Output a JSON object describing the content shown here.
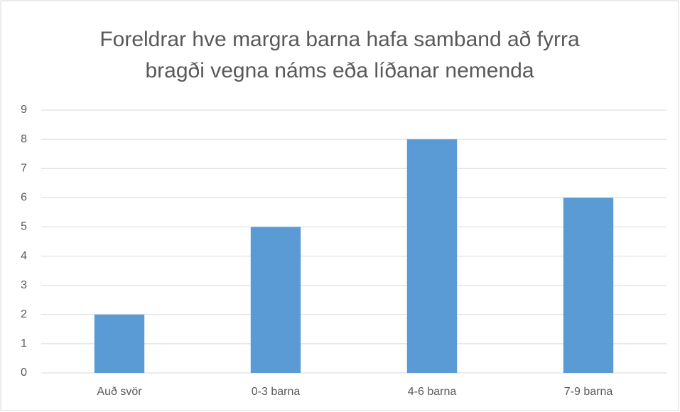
{
  "chart_data": {
    "type": "bar",
    "title": "Foreldrar hve margra barna hafa samband að fyrra bragði vegna náms eða líðanar nemenda",
    "categories": [
      "Auð svör",
      "0-3 barna",
      "4-6 barna",
      "7-9 barna"
    ],
    "values": [
      2,
      5,
      8,
      6
    ],
    "color": "#5b9bd5",
    "ylim": [
      0,
      9
    ],
    "yticks": [
      0,
      1,
      2,
      3,
      4,
      5,
      6,
      7,
      8,
      9
    ],
    "grid": true
  }
}
